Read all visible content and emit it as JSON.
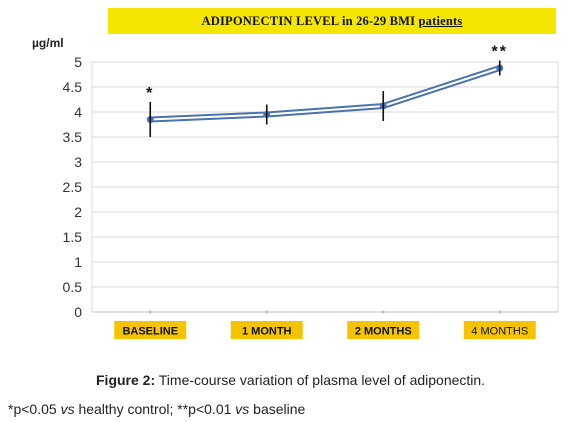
{
  "chart_data": {
    "type": "line",
    "title": "ADIPONECTIN LEVEL in 26-29 BMI patients",
    "title_main": "ADIPONECTIN LEVEL in 26-29 BMI ",
    "title_underlined": "patients",
    "ylabel": "µg/ml",
    "xlabel": "",
    "categories": [
      "BASELINE",
      "1 MONTH",
      "2 MONTHS",
      "4 MONTHS"
    ],
    "values": [
      3.85,
      3.95,
      4.12,
      4.88
    ],
    "error": [
      0.35,
      0.2,
      0.3,
      0.15
    ],
    "significance": [
      "*",
      "",
      "",
      "**"
    ],
    "ylim": [
      0,
      5
    ],
    "yticks": [
      "0",
      "0.5",
      "1",
      "1.5",
      "2",
      "2.5",
      "3",
      "3.5",
      "4",
      "4.5",
      "5"
    ],
    "grid": true,
    "colors": {
      "line": "#4a72b0",
      "line_inner": "#ffffff",
      "grid": "#d9d9d9",
      "category_box": "#f5c400",
      "title_banner": "#f4e600"
    }
  },
  "caption": {
    "label": "Figure 2:",
    "text": " Time-course variation of plasma level of adiponectin."
  },
  "footnote": {
    "part1": "*p<0.05 ",
    "italic1": "vs",
    "part2": " healthy control; **p<0.01 ",
    "italic2": "vs",
    "part3": " baseline"
  }
}
